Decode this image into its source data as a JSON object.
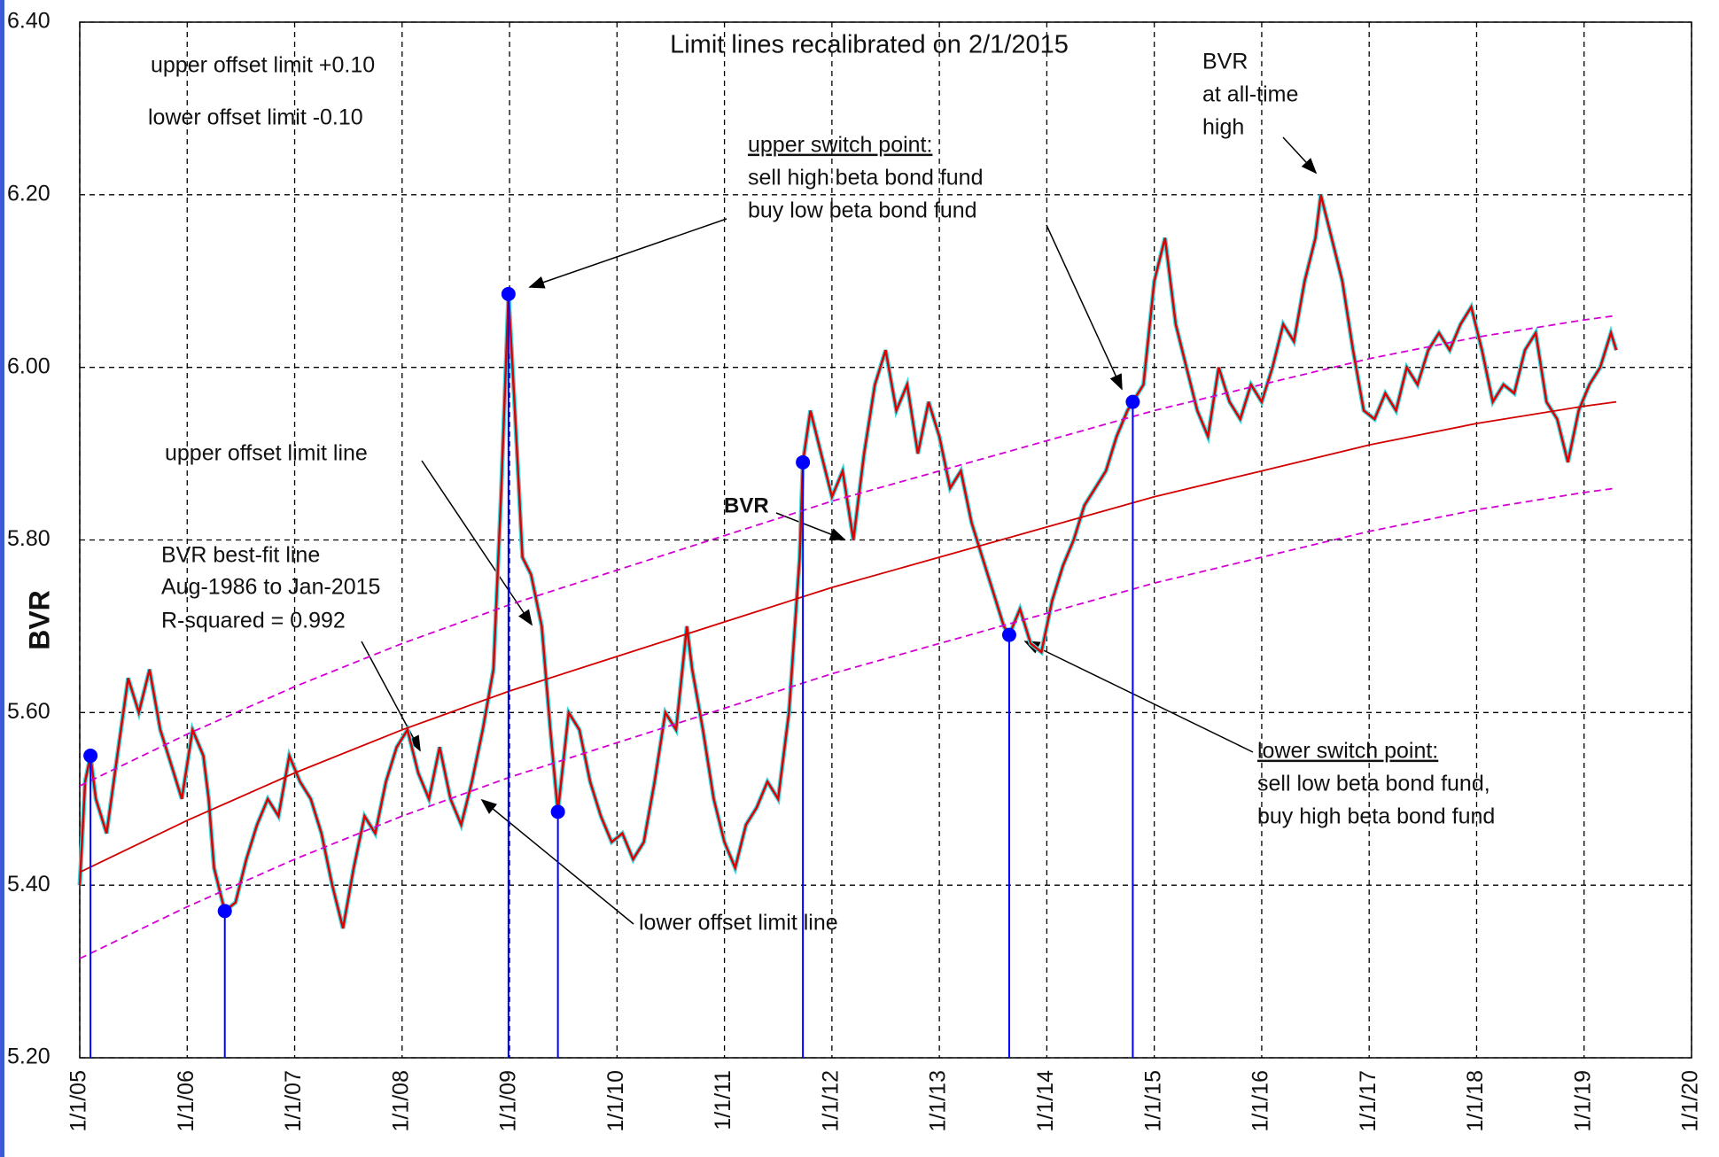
{
  "chart_data": {
    "type": "line",
    "y_label": "BVR",
    "xlim": [
      2005,
      2020
    ],
    "ylim": [
      5.2,
      6.4
    ],
    "grid": true,
    "xticks": [
      {
        "value": 2005,
        "label": "1/1/05"
      },
      {
        "value": 2006,
        "label": "1/1/06"
      },
      {
        "value": 2007,
        "label": "1/1/07"
      },
      {
        "value": 2008,
        "label": "1/1/08"
      },
      {
        "value": 2009,
        "label": "1/1/09"
      },
      {
        "value": 2010,
        "label": "1/1/10"
      },
      {
        "value": 2011,
        "label": "1/1/11"
      },
      {
        "value": 2012,
        "label": "1/1/12"
      },
      {
        "value": 2013,
        "label": "1/1/13"
      },
      {
        "value": 2014,
        "label": "1/1/14"
      },
      {
        "value": 2015,
        "label": "1/1/15"
      },
      {
        "value": 2016,
        "label": "1/1/16"
      },
      {
        "value": 2017,
        "label": "1/1/17"
      },
      {
        "value": 2018,
        "label": "1/1/18"
      },
      {
        "value": 2019,
        "label": "1/1/19"
      },
      {
        "value": 2020,
        "label": "1/1/20"
      }
    ],
    "yticks": [
      {
        "value": 5.2,
        "label": "5.20"
      },
      {
        "value": 5.4,
        "label": "5.40"
      },
      {
        "value": 5.6,
        "label": "5.60"
      },
      {
        "value": 5.8,
        "label": "5.80"
      },
      {
        "value": 6.0,
        "label": "6.00"
      },
      {
        "value": 6.2,
        "label": "6.20"
      },
      {
        "value": 6.4,
        "label": "6.40"
      }
    ],
    "series": [
      {
        "style": "solid",
        "color": "#e00000",
        "x": [
          2005.0,
          2005.05,
          2005.1,
          2005.15,
          2005.25,
          2005.35,
          2005.45,
          2005.55,
          2005.65,
          2005.75,
          2005.85,
          2005.95,
          2006.05,
          2006.15,
          2006.2,
          2006.25,
          2006.35,
          2006.45,
          2006.55,
          2006.65,
          2006.75,
          2006.85,
          2006.95,
          2007.05,
          2007.15,
          2007.25,
          2007.35,
          2007.45,
          2007.55,
          2007.65,
          2007.75,
          2007.85,
          2007.95,
          2008.05,
          2008.15,
          2008.25,
          2008.35,
          2008.45,
          2008.55,
          2008.65,
          2008.75,
          2008.85,
          2008.92,
          2008.99,
          2009.05,
          2009.12,
          2009.2,
          2009.3,
          2009.38,
          2009.45,
          2009.55,
          2009.65,
          2009.75,
          2009.85,
          2009.95,
          2010.05,
          2010.15,
          2010.25,
          2010.35,
          2010.45,
          2010.55,
          2010.65,
          2010.7,
          2010.8,
          2010.9,
          2011.0,
          2011.1,
          2011.2,
          2011.3,
          2011.4,
          2011.5,
          2011.6,
          2011.7,
          2011.73,
          2011.8,
          2011.9,
          2012.0,
          2012.1,
          2012.2,
          2012.3,
          2012.4,
          2012.5,
          2012.6,
          2012.7,
          2012.8,
          2012.9,
          2013.0,
          2013.1,
          2013.2,
          2013.3,
          2013.4,
          2013.5,
          2013.6,
          2013.65,
          2013.75,
          2013.85,
          2013.95,
          2014.05,
          2014.15,
          2014.25,
          2014.35,
          2014.45,
          2014.55,
          2014.65,
          2014.75,
          2014.8,
          2014.9,
          2015.0,
          2015.1,
          2015.2,
          2015.3,
          2015.4,
          2015.5,
          2015.6,
          2015.7,
          2015.8,
          2015.9,
          2016.0,
          2016.1,
          2016.2,
          2016.3,
          2016.4,
          2016.5,
          2016.55,
          2016.65,
          2016.75,
          2016.85,
          2016.95,
          2017.05,
          2017.15,
          2017.25,
          2017.35,
          2017.45,
          2017.55,
          2017.65,
          2017.75,
          2017.85,
          2017.95,
          2018.05,
          2018.15,
          2018.25,
          2018.35,
          2018.45,
          2018.55,
          2018.65,
          2018.75,
          2018.85,
          2018.95,
          2019.05,
          2019.15,
          2019.25,
          2019.3
        ],
        "values": [
          5.4,
          5.52,
          5.55,
          5.5,
          5.46,
          5.55,
          5.64,
          5.6,
          5.65,
          5.58,
          5.54,
          5.5,
          5.58,
          5.55,
          5.5,
          5.42,
          5.37,
          5.38,
          5.43,
          5.47,
          5.5,
          5.48,
          5.55,
          5.52,
          5.5,
          5.46,
          5.4,
          5.35,
          5.42,
          5.48,
          5.46,
          5.52,
          5.56,
          5.58,
          5.53,
          5.5,
          5.56,
          5.5,
          5.47,
          5.52,
          5.58,
          5.65,
          5.85,
          6.085,
          5.95,
          5.78,
          5.76,
          5.7,
          5.58,
          5.485,
          5.6,
          5.58,
          5.52,
          5.48,
          5.45,
          5.46,
          5.43,
          5.45,
          5.52,
          5.6,
          5.58,
          5.7,
          5.65,
          5.58,
          5.5,
          5.45,
          5.42,
          5.47,
          5.49,
          5.52,
          5.5,
          5.6,
          5.78,
          5.89,
          5.95,
          5.9,
          5.85,
          5.88,
          5.8,
          5.9,
          5.98,
          6.02,
          5.95,
          5.98,
          5.9,
          5.96,
          5.92,
          5.86,
          5.88,
          5.82,
          5.78,
          5.74,
          5.7,
          5.69,
          5.72,
          5.68,
          5.67,
          5.73,
          5.77,
          5.8,
          5.84,
          5.86,
          5.88,
          5.92,
          5.95,
          5.96,
          5.98,
          6.1,
          6.15,
          6.05,
          6.0,
          5.95,
          5.92,
          6.0,
          5.96,
          5.94,
          5.98,
          5.96,
          6.0,
          6.05,
          6.03,
          6.1,
          6.15,
          6.2,
          6.15,
          6.1,
          6.02,
          5.95,
          5.94,
          5.97,
          5.95,
          6.0,
          5.98,
          6.02,
          6.04,
          6.02,
          6.05,
          6.07,
          6.02,
          5.96,
          5.98,
          5.97,
          6.02,
          6.04,
          5.96,
          5.94,
          5.89,
          5.95,
          5.98,
          6.0,
          6.04,
          6.02
        ]
      },
      {
        "style": "solid",
        "color": "#d40000",
        "x": [
          2005,
          2006,
          2007,
          2008,
          2009,
          2010,
          2011,
          2012,
          2013,
          2014,
          2015,
          2016,
          2017,
          2018,
          2019,
          2019.3
        ],
        "values": [
          5.415,
          5.475,
          5.53,
          5.58,
          5.625,
          5.665,
          5.705,
          5.745,
          5.78,
          5.815,
          5.85,
          5.88,
          5.91,
          5.935,
          5.955,
          5.96
        ]
      },
      {
        "style": "dashed",
        "color": "#d400d4",
        "x": [
          2005,
          2006,
          2007,
          2008,
          2009,
          2010,
          2011,
          2012,
          2013,
          2014,
          2015,
          2016,
          2017,
          2018,
          2019,
          2019.3
        ],
        "values": [
          5.515,
          5.575,
          5.63,
          5.68,
          5.725,
          5.765,
          5.805,
          5.845,
          5.88,
          5.915,
          5.95,
          5.98,
          6.01,
          6.035,
          6.055,
          6.06
        ]
      },
      {
        "style": "dashed",
        "color": "#d400d4",
        "x": [
          2005,
          2006,
          2007,
          2008,
          2009,
          2010,
          2011,
          2012,
          2013,
          2014,
          2015,
          2016,
          2017,
          2018,
          2019,
          2019.3
        ],
        "values": [
          5.315,
          5.375,
          5.43,
          5.48,
          5.525,
          5.565,
          5.605,
          5.645,
          5.68,
          5.715,
          5.75,
          5.78,
          5.81,
          5.835,
          5.855,
          5.86
        ]
      },
      {
        "style": "points",
        "color": "#0000ff",
        "x": [
          2005.1,
          2006.35,
          2008.99,
          2009.45,
          2011.73,
          2013.65,
          2014.8
        ],
        "values": [
          5.55,
          5.37,
          6.085,
          5.485,
          5.89,
          5.69,
          5.96
        ]
      }
    ],
    "annotations": [
      "Limit lines recalibrated on 2/1/2015",
      "upper offset limit +0.10",
      "lower offset limit  -0.10",
      "BVR",
      "at all-time",
      "high",
      "upper switch point:",
      "sell high beta bond fund",
      "buy low beta bond fund",
      "upper offset limit line",
      "BVR",
      "BVR best-fit line",
      "Aug-1986 to Jan-2015",
      "R-squared = 0.992",
      "lower offset limit line",
      "lower switch point:",
      "sell low beta bond fund,",
      "buy high beta bond fund"
    ]
  }
}
